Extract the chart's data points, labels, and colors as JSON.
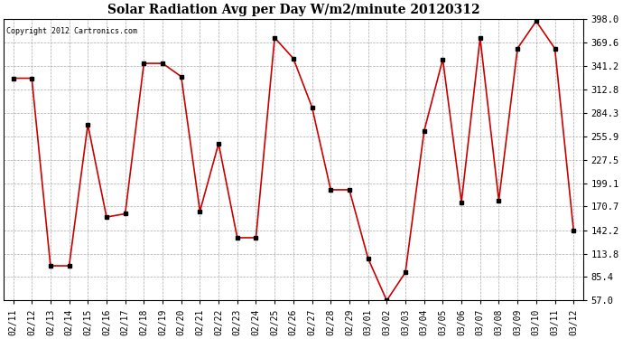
{
  "title": "Solar Radiation Avg per Day W/m2/minute 20120312",
  "copyright": "Copyright 2012 Cartronics.com",
  "dates": [
    "02/11",
    "02/12",
    "02/13",
    "02/14",
    "02/15",
    "02/16",
    "02/17",
    "02/18",
    "02/19",
    "02/20",
    "02/21",
    "02/22",
    "02/23",
    "02/24",
    "02/25",
    "02/26",
    "02/27",
    "02/28",
    "02/29",
    "03/01",
    "03/02",
    "03/03",
    "03/04",
    "03/05",
    "03/06",
    "03/07",
    "03/08",
    "03/09",
    "03/10",
    "03/11",
    "03/12"
  ],
  "values": [
    326,
    326,
    99,
    99,
    270,
    158,
    162,
    344,
    344,
    328,
    165,
    247,
    133,
    133,
    375,
    350,
    291,
    191,
    191,
    108,
    57,
    91,
    262,
    349,
    176,
    375,
    178,
    362,
    395,
    362,
    142
  ],
  "line_color": "#cc0000",
  "marker_color": "#000000",
  "bg_color": "#ffffff",
  "grid_color": "#aaaaaa",
  "ylim_min": 57.0,
  "ylim_max": 398.0,
  "yticks": [
    57.0,
    85.4,
    113.8,
    142.2,
    170.7,
    199.1,
    227.5,
    255.9,
    284.3,
    312.8,
    341.2,
    369.6,
    398.0
  ]
}
